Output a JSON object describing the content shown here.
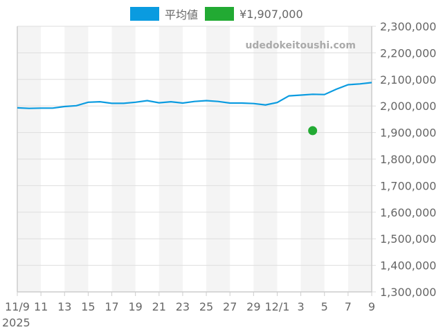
{
  "legend": {
    "series_label": "平均値",
    "series_color": "#0A9BE0",
    "point_label": "¥1,907,000",
    "point_color": "#22AA33"
  },
  "watermark": "udedokeitoushi.com",
  "chart_data": {
    "type": "line",
    "title": "",
    "xlabel": "",
    "ylabel": "",
    "year_label": "2025",
    "ylim": [
      1300000,
      2300000
    ],
    "yticks": [
      1300000,
      1400000,
      1500000,
      1600000,
      1700000,
      1800000,
      1900000,
      2000000,
      2100000,
      2200000,
      2300000
    ],
    "ytick_labels": [
      "1,300,000",
      "1,400,000",
      "1,500,000",
      "1,600,000",
      "1,700,000",
      "1,800,000",
      "1,900,000",
      "2,000,000",
      "2,100,000",
      "2,200,000",
      "2,300,000"
    ],
    "xtick_labels": [
      "11/9",
      "11",
      "13",
      "15",
      "17",
      "19",
      "21",
      "23",
      "25",
      "27",
      "29",
      "12/1",
      "3",
      "5",
      "7",
      "9"
    ],
    "grid": true,
    "legend_position": "top",
    "x": [
      "11/9",
      "11/10",
      "11/11",
      "11/12",
      "11/13",
      "11/14",
      "11/15",
      "11/16",
      "11/17",
      "11/18",
      "11/19",
      "11/20",
      "11/21",
      "11/22",
      "11/23",
      "11/24",
      "11/25",
      "11/26",
      "11/27",
      "11/28",
      "11/29",
      "11/30",
      "12/1",
      "12/2",
      "12/3",
      "12/4",
      "12/5",
      "12/6",
      "12/7",
      "12/8",
      "12/9"
    ],
    "series": [
      {
        "name": "平均値",
        "values": [
          1993000,
          1991000,
          1992000,
          1992000,
          1998000,
          2001000,
          2014000,
          2016000,
          2010000,
          2010000,
          2014000,
          2020000,
          2012000,
          2016000,
          2011000,
          2017000,
          2020000,
          2017000,
          2011000,
          2011000,
          2009000,
          2004000,
          2013000,
          2038000,
          2041000,
          2044000,
          2043000,
          2063000,
          2080000,
          2083000,
          2088000
        ]
      },
      {
        "name": "¥1,907,000",
        "type": "scatter",
        "points": [
          {
            "x": "12/4",
            "y": 1907000
          }
        ]
      }
    ]
  }
}
